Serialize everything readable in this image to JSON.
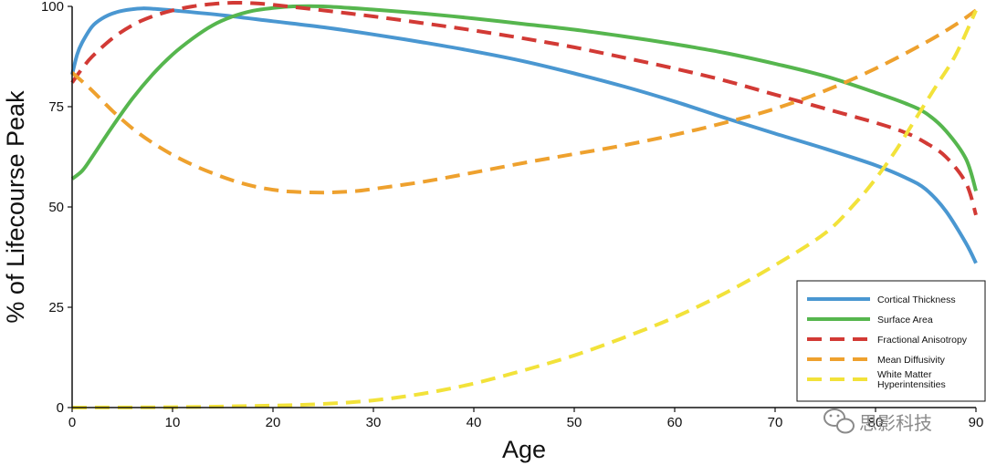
{
  "chart_data": {
    "type": "line",
    "title": "",
    "xlabel": "Age",
    "ylabel": "% of Lifecourse Peak",
    "xlim": [
      0,
      90
    ],
    "ylim": [
      0,
      100
    ],
    "xticks": [
      0,
      10,
      20,
      30,
      40,
      50,
      60,
      70,
      80,
      90
    ],
    "yticks": [
      0,
      25,
      50,
      75,
      100
    ],
    "grid": false,
    "legend_position": "bottom-right",
    "series": [
      {
        "name": "Cortical Thickness",
        "color": "#4a97d1",
        "dashed": false,
        "points": [
          [
            0,
            83
          ],
          [
            0.5,
            88
          ],
          [
            1,
            91
          ],
          [
            2,
            95
          ],
          [
            3,
            97
          ],
          [
            4,
            98.2
          ],
          [
            5,
            98.9
          ],
          [
            6,
            99.3
          ],
          [
            7,
            99.5
          ],
          [
            8,
            99.4
          ],
          [
            10,
            99
          ],
          [
            15,
            97.8
          ],
          [
            20,
            96.3
          ],
          [
            25,
            94.8
          ],
          [
            30,
            93
          ],
          [
            35,
            91
          ],
          [
            40,
            88.8
          ],
          [
            45,
            86.3
          ],
          [
            50,
            83.3
          ],
          [
            55,
            80
          ],
          [
            60,
            76.3
          ],
          [
            65,
            72.2
          ],
          [
            70,
            68.3
          ],
          [
            75,
            64.5
          ],
          [
            80,
            60.4
          ],
          [
            83,
            57.3
          ],
          [
            85,
            54.4
          ],
          [
            87,
            49
          ],
          [
            89,
            41
          ],
          [
            90,
            36
          ]
        ]
      },
      {
        "name": "Surface Area",
        "color": "#56b64e",
        "dashed": false,
        "points": [
          [
            0,
            57
          ],
          [
            1,
            59
          ],
          [
            2,
            62.5
          ],
          [
            4,
            70
          ],
          [
            6,
            77
          ],
          [
            8,
            83
          ],
          [
            10,
            88
          ],
          [
            12,
            92
          ],
          [
            14,
            95.3
          ],
          [
            16,
            97.5
          ],
          [
            18,
            98.9
          ],
          [
            20,
            99.6
          ],
          [
            22,
            100
          ],
          [
            25,
            100
          ],
          [
            30,
            99.2
          ],
          [
            35,
            98.2
          ],
          [
            40,
            97
          ],
          [
            45,
            95.6
          ],
          [
            50,
            94.2
          ],
          [
            55,
            92.5
          ],
          [
            60,
            90.6
          ],
          [
            65,
            88.4
          ],
          [
            70,
            85.7
          ],
          [
            75,
            82.6
          ],
          [
            80,
            78.5
          ],
          [
            83,
            75.8
          ],
          [
            85,
            73.4
          ],
          [
            87,
            69
          ],
          [
            89,
            62
          ],
          [
            90,
            54
          ]
        ]
      },
      {
        "name": "Fractional Anisotropy",
        "color": "#d23a35",
        "dashed": true,
        "points": [
          [
            0,
            81
          ],
          [
            1,
            84.5
          ],
          [
            2,
            87.5
          ],
          [
            4,
            92
          ],
          [
            6,
            95.3
          ],
          [
            8,
            97.5
          ],
          [
            10,
            99
          ],
          [
            12,
            100
          ],
          [
            14,
            100.6
          ],
          [
            16,
            100.9
          ],
          [
            18,
            100.8
          ],
          [
            20,
            100.4
          ],
          [
            25,
            99
          ],
          [
            30,
            97.5
          ],
          [
            35,
            95.8
          ],
          [
            40,
            94
          ],
          [
            45,
            92
          ],
          [
            50,
            89.8
          ],
          [
            55,
            87.2
          ],
          [
            60,
            84.5
          ],
          [
            65,
            81.5
          ],
          [
            70,
            78
          ],
          [
            75,
            74.5
          ],
          [
            80,
            71
          ],
          [
            83,
            68.5
          ],
          [
            85,
            66
          ],
          [
            87,
            62.5
          ],
          [
            89,
            56
          ],
          [
            90,
            48
          ]
        ]
      },
      {
        "name": "Mean Diffusivity",
        "color": "#eea12e",
        "dashed": true,
        "points": [
          [
            0,
            83.5
          ],
          [
            2,
            79
          ],
          [
            4,
            74
          ],
          [
            6,
            69.6
          ],
          [
            8,
            66
          ],
          [
            10,
            63
          ],
          [
            12,
            60.5
          ],
          [
            14,
            58.4
          ],
          [
            16,
            56.6
          ],
          [
            18,
            55.2
          ],
          [
            20,
            54.3
          ],
          [
            22,
            53.8
          ],
          [
            25,
            53.6
          ],
          [
            28,
            53.9
          ],
          [
            30,
            54.5
          ],
          [
            35,
            56.3
          ],
          [
            40,
            58.6
          ],
          [
            45,
            61
          ],
          [
            50,
            63.2
          ],
          [
            55,
            65.4
          ],
          [
            60,
            68
          ],
          [
            65,
            71
          ],
          [
            70,
            74.5
          ],
          [
            75,
            79
          ],
          [
            80,
            84.5
          ],
          [
            85,
            91
          ],
          [
            88,
            95.5
          ],
          [
            90,
            99
          ]
        ]
      },
      {
        "name": "White Matter Hyperintensities",
        "color": "#f2e23a",
        "dashed": true,
        "points": [
          [
            0,
            0
          ],
          [
            10,
            0.1
          ],
          [
            20,
            0.5
          ],
          [
            25,
            0.9
          ],
          [
            30,
            1.8
          ],
          [
            35,
            3.5
          ],
          [
            40,
            6
          ],
          [
            45,
            9.3
          ],
          [
            50,
            13
          ],
          [
            55,
            17.5
          ],
          [
            60,
            22.5
          ],
          [
            65,
            28.5
          ],
          [
            70,
            35.5
          ],
          [
            75,
            43.5
          ],
          [
            78,
            51
          ],
          [
            80,
            57
          ],
          [
            82,
            64
          ],
          [
            84,
            72
          ],
          [
            86,
            80
          ],
          [
            88,
            88
          ],
          [
            90,
            99
          ]
        ]
      }
    ]
  },
  "watermark": {
    "icon": "wechat-icon",
    "text": "思影科技"
  }
}
